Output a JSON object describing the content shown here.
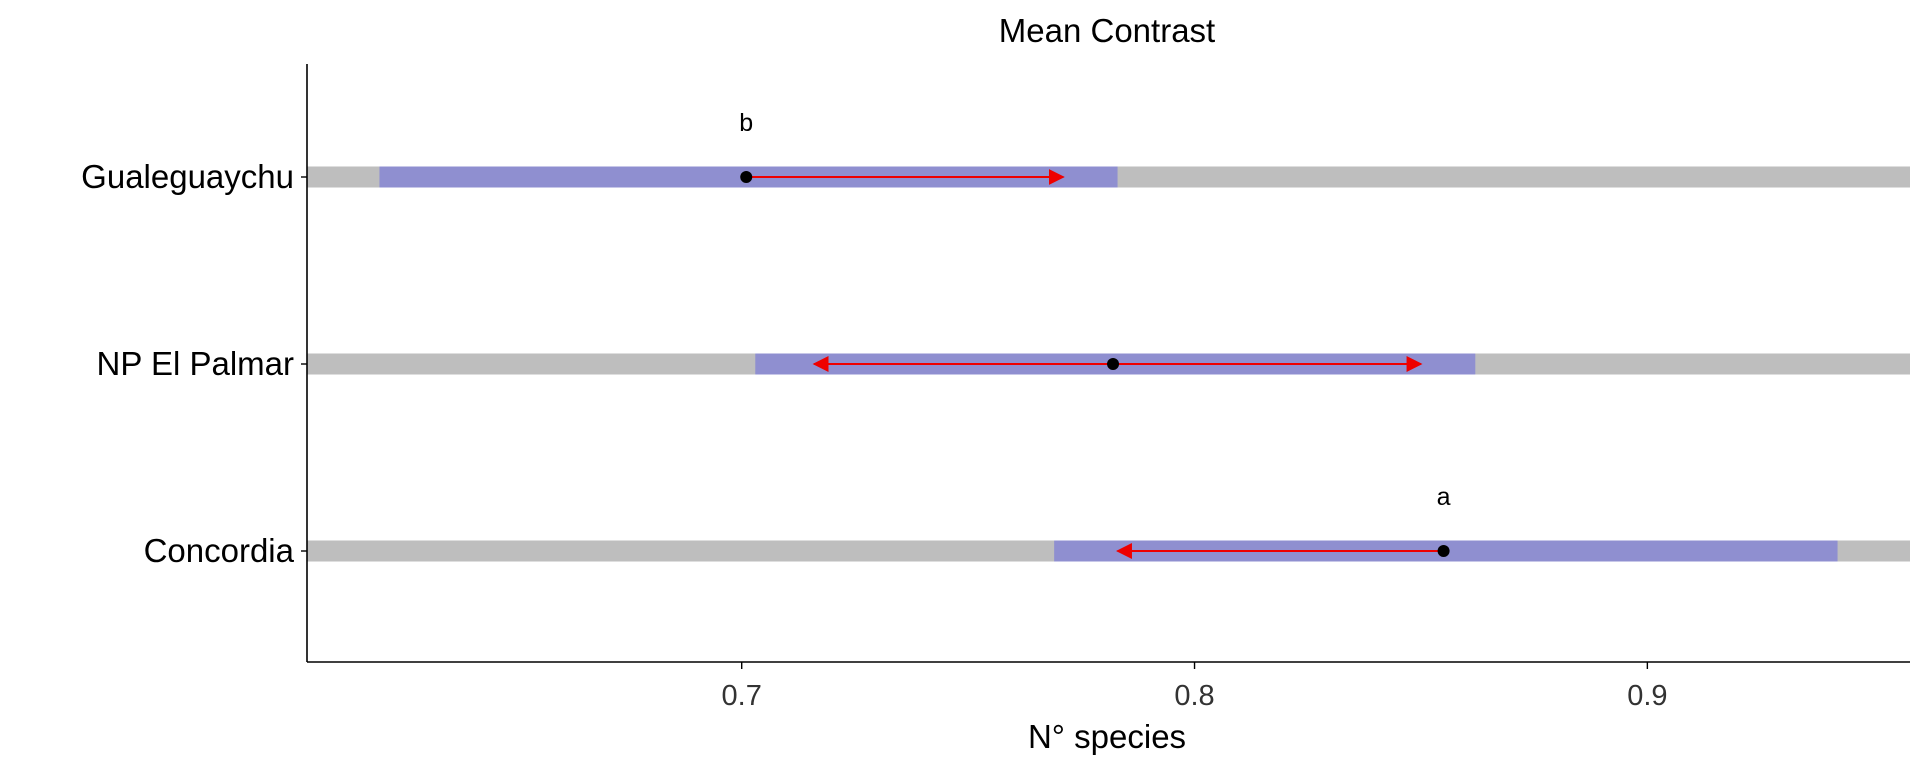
{
  "chart_data": {
    "type": "bar",
    "title": "Mean Contrast",
    "xlabel": "N° species",
    "ylabel": "",
    "xlim": [
      0.604,
      0.958
    ],
    "x_ticks": [
      0.7,
      0.8,
      0.9
    ],
    "x_tick_labels": [
      "0.7",
      "0.8",
      "0.9"
    ],
    "grid": false,
    "legend": "none",
    "colors": {
      "full_range": "#bebebe",
      "interval": "#8f8fd0",
      "arrow": "#ee0000",
      "point": "#000000"
    },
    "categories": [
      "Gualeguaychu",
      "NP El Palmar",
      "Concordia"
    ],
    "points": [
      {
        "category": "Gualeguaychu",
        "mean": 0.701,
        "interval": [
          0.62,
          0.783
        ],
        "arrows": [
          0.771
        ],
        "letter": "b"
      },
      {
        "category": "NP El Palmar",
        "mean": 0.782,
        "interval": [
          0.703,
          0.862
        ],
        "arrows": [
          0.716,
          0.85
        ],
        "letter": ""
      },
      {
        "category": "Concordia",
        "mean": 0.855,
        "interval": [
          0.769,
          0.942
        ],
        "arrows": [
          0.783
        ],
        "letter": "a"
      }
    ]
  }
}
